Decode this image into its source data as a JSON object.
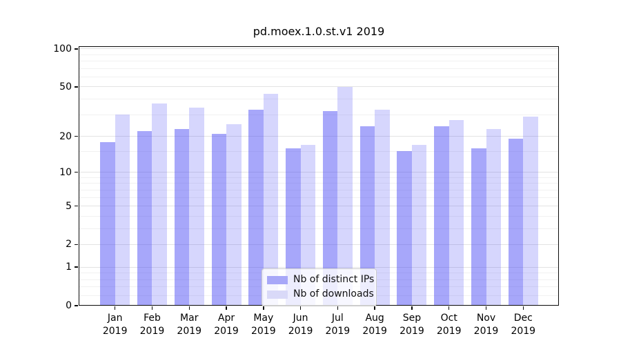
{
  "chart_data": {
    "type": "bar",
    "title": "pd.moex.1.0.st.v1 2019",
    "categories": [
      "Jan 2019",
      "Feb 2019",
      "Mar 2019",
      "Apr 2019",
      "May 2019",
      "Jun 2019",
      "Jul 2019",
      "Aug 2019",
      "Sep 2019",
      "Oct 2019",
      "Nov 2019",
      "Dec 2019"
    ],
    "series": [
      {
        "name": "Nb of distinct IPs",
        "values": [
          18,
          22,
          23,
          21,
          33,
          16,
          32,
          24,
          15,
          24,
          16,
          19
        ],
        "color": "#a8a8f8",
        "fill_base": "#3c3cf5",
        "fill_alpha": 0.45
      },
      {
        "name": "Nb of downloads",
        "values": [
          30,
          37,
          34,
          25,
          44,
          17,
          50,
          33,
          17,
          27,
          23,
          29
        ],
        "color": "#d9d9f8",
        "fill_base": "#3c3cf5",
        "fill_alpha": 0.21
      }
    ],
    "yscale": "log1p",
    "y_major_ticks": [
      0,
      1,
      2,
      5,
      10,
      20,
      50,
      100
    ],
    "y_minor_ticks": [
      0.2,
      0.4,
      0.6,
      0.8,
      3,
      4,
      6,
      7,
      8,
      9,
      15,
      30,
      40,
      60,
      70,
      80,
      90
    ],
    "ylim": [
      0,
      105
    ],
    "xlabel": "",
    "ylabel": "",
    "grid": "horizontal",
    "legend_position": "lower center"
  },
  "colors": {
    "grid_major": "#e3e3e3",
    "grid_minor": "#f1f1f1",
    "axis_frame": "#0a0a0a",
    "text": "#000000",
    "legend_border": "#cccccc",
    "background": "#ffffff"
  }
}
